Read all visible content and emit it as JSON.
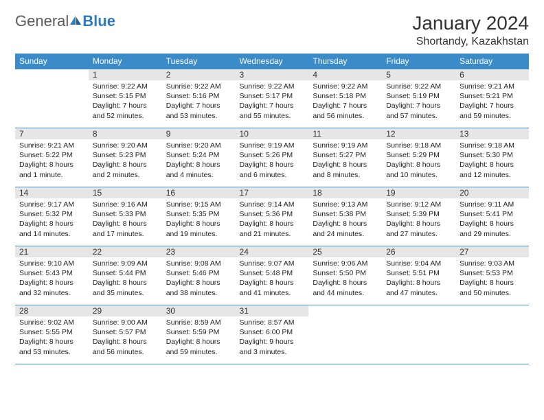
{
  "logo": {
    "part1": "General",
    "part2": "Blue"
  },
  "title": "January 2024",
  "location": "Shortandy, Kazakhstan",
  "styling": {
    "header_bg": "#3b8bc8",
    "header_fg": "#ffffff",
    "daynum_bg": "#e6e6e6",
    "border_color": "#3b8bc8",
    "body_font_size": 10.5,
    "header_font_size": 12,
    "title_font_size": 28,
    "location_font_size": 16,
    "page_bg": "#ffffff",
    "text_color": "#333333",
    "logo_accent": "#2f7bbf",
    "columns": 7,
    "weeks": 5
  },
  "weekdays": [
    "Sunday",
    "Monday",
    "Tuesday",
    "Wednesday",
    "Thursday",
    "Friday",
    "Saturday"
  ],
  "cells": [
    [
      {
        "n": "",
        "sr": "",
        "ss": "",
        "dl": ""
      },
      {
        "n": "1",
        "sr": "9:22 AM",
        "ss": "5:15 PM",
        "dl": "7 hours and 52 minutes."
      },
      {
        "n": "2",
        "sr": "9:22 AM",
        "ss": "5:16 PM",
        "dl": "7 hours and 53 minutes."
      },
      {
        "n": "3",
        "sr": "9:22 AM",
        "ss": "5:17 PM",
        "dl": "7 hours and 55 minutes."
      },
      {
        "n": "4",
        "sr": "9:22 AM",
        "ss": "5:18 PM",
        "dl": "7 hours and 56 minutes."
      },
      {
        "n": "5",
        "sr": "9:22 AM",
        "ss": "5:19 PM",
        "dl": "7 hours and 57 minutes."
      },
      {
        "n": "6",
        "sr": "9:21 AM",
        "ss": "5:21 PM",
        "dl": "7 hours and 59 minutes."
      }
    ],
    [
      {
        "n": "7",
        "sr": "9:21 AM",
        "ss": "5:22 PM",
        "dl": "8 hours and 1 minute."
      },
      {
        "n": "8",
        "sr": "9:20 AM",
        "ss": "5:23 PM",
        "dl": "8 hours and 2 minutes."
      },
      {
        "n": "9",
        "sr": "9:20 AM",
        "ss": "5:24 PM",
        "dl": "8 hours and 4 minutes."
      },
      {
        "n": "10",
        "sr": "9:19 AM",
        "ss": "5:26 PM",
        "dl": "8 hours and 6 minutes."
      },
      {
        "n": "11",
        "sr": "9:19 AM",
        "ss": "5:27 PM",
        "dl": "8 hours and 8 minutes."
      },
      {
        "n": "12",
        "sr": "9:18 AM",
        "ss": "5:29 PM",
        "dl": "8 hours and 10 minutes."
      },
      {
        "n": "13",
        "sr": "9:18 AM",
        "ss": "5:30 PM",
        "dl": "8 hours and 12 minutes."
      }
    ],
    [
      {
        "n": "14",
        "sr": "9:17 AM",
        "ss": "5:32 PM",
        "dl": "8 hours and 14 minutes."
      },
      {
        "n": "15",
        "sr": "9:16 AM",
        "ss": "5:33 PM",
        "dl": "8 hours and 17 minutes."
      },
      {
        "n": "16",
        "sr": "9:15 AM",
        "ss": "5:35 PM",
        "dl": "8 hours and 19 minutes."
      },
      {
        "n": "17",
        "sr": "9:14 AM",
        "ss": "5:36 PM",
        "dl": "8 hours and 21 minutes."
      },
      {
        "n": "18",
        "sr": "9:13 AM",
        "ss": "5:38 PM",
        "dl": "8 hours and 24 minutes."
      },
      {
        "n": "19",
        "sr": "9:12 AM",
        "ss": "5:39 PM",
        "dl": "8 hours and 27 minutes."
      },
      {
        "n": "20",
        "sr": "9:11 AM",
        "ss": "5:41 PM",
        "dl": "8 hours and 29 minutes."
      }
    ],
    [
      {
        "n": "21",
        "sr": "9:10 AM",
        "ss": "5:43 PM",
        "dl": "8 hours and 32 minutes."
      },
      {
        "n": "22",
        "sr": "9:09 AM",
        "ss": "5:44 PM",
        "dl": "8 hours and 35 minutes."
      },
      {
        "n": "23",
        "sr": "9:08 AM",
        "ss": "5:46 PM",
        "dl": "8 hours and 38 minutes."
      },
      {
        "n": "24",
        "sr": "9:07 AM",
        "ss": "5:48 PM",
        "dl": "8 hours and 41 minutes."
      },
      {
        "n": "25",
        "sr": "9:06 AM",
        "ss": "5:50 PM",
        "dl": "8 hours and 44 minutes."
      },
      {
        "n": "26",
        "sr": "9:04 AM",
        "ss": "5:51 PM",
        "dl": "8 hours and 47 minutes."
      },
      {
        "n": "27",
        "sr": "9:03 AM",
        "ss": "5:53 PM",
        "dl": "8 hours and 50 minutes."
      }
    ],
    [
      {
        "n": "28",
        "sr": "9:02 AM",
        "ss": "5:55 PM",
        "dl": "8 hours and 53 minutes."
      },
      {
        "n": "29",
        "sr": "9:00 AM",
        "ss": "5:57 PM",
        "dl": "8 hours and 56 minutes."
      },
      {
        "n": "30",
        "sr": "8:59 AM",
        "ss": "5:59 PM",
        "dl": "8 hours and 59 minutes."
      },
      {
        "n": "31",
        "sr": "8:57 AM",
        "ss": "6:00 PM",
        "dl": "9 hours and 3 minutes."
      },
      {
        "n": "",
        "sr": "",
        "ss": "",
        "dl": ""
      },
      {
        "n": "",
        "sr": "",
        "ss": "",
        "dl": ""
      },
      {
        "n": "",
        "sr": "",
        "ss": "",
        "dl": ""
      }
    ]
  ],
  "labels": {
    "sunrise": "Sunrise:",
    "sunset": "Sunset:",
    "daylight": "Daylight:"
  }
}
